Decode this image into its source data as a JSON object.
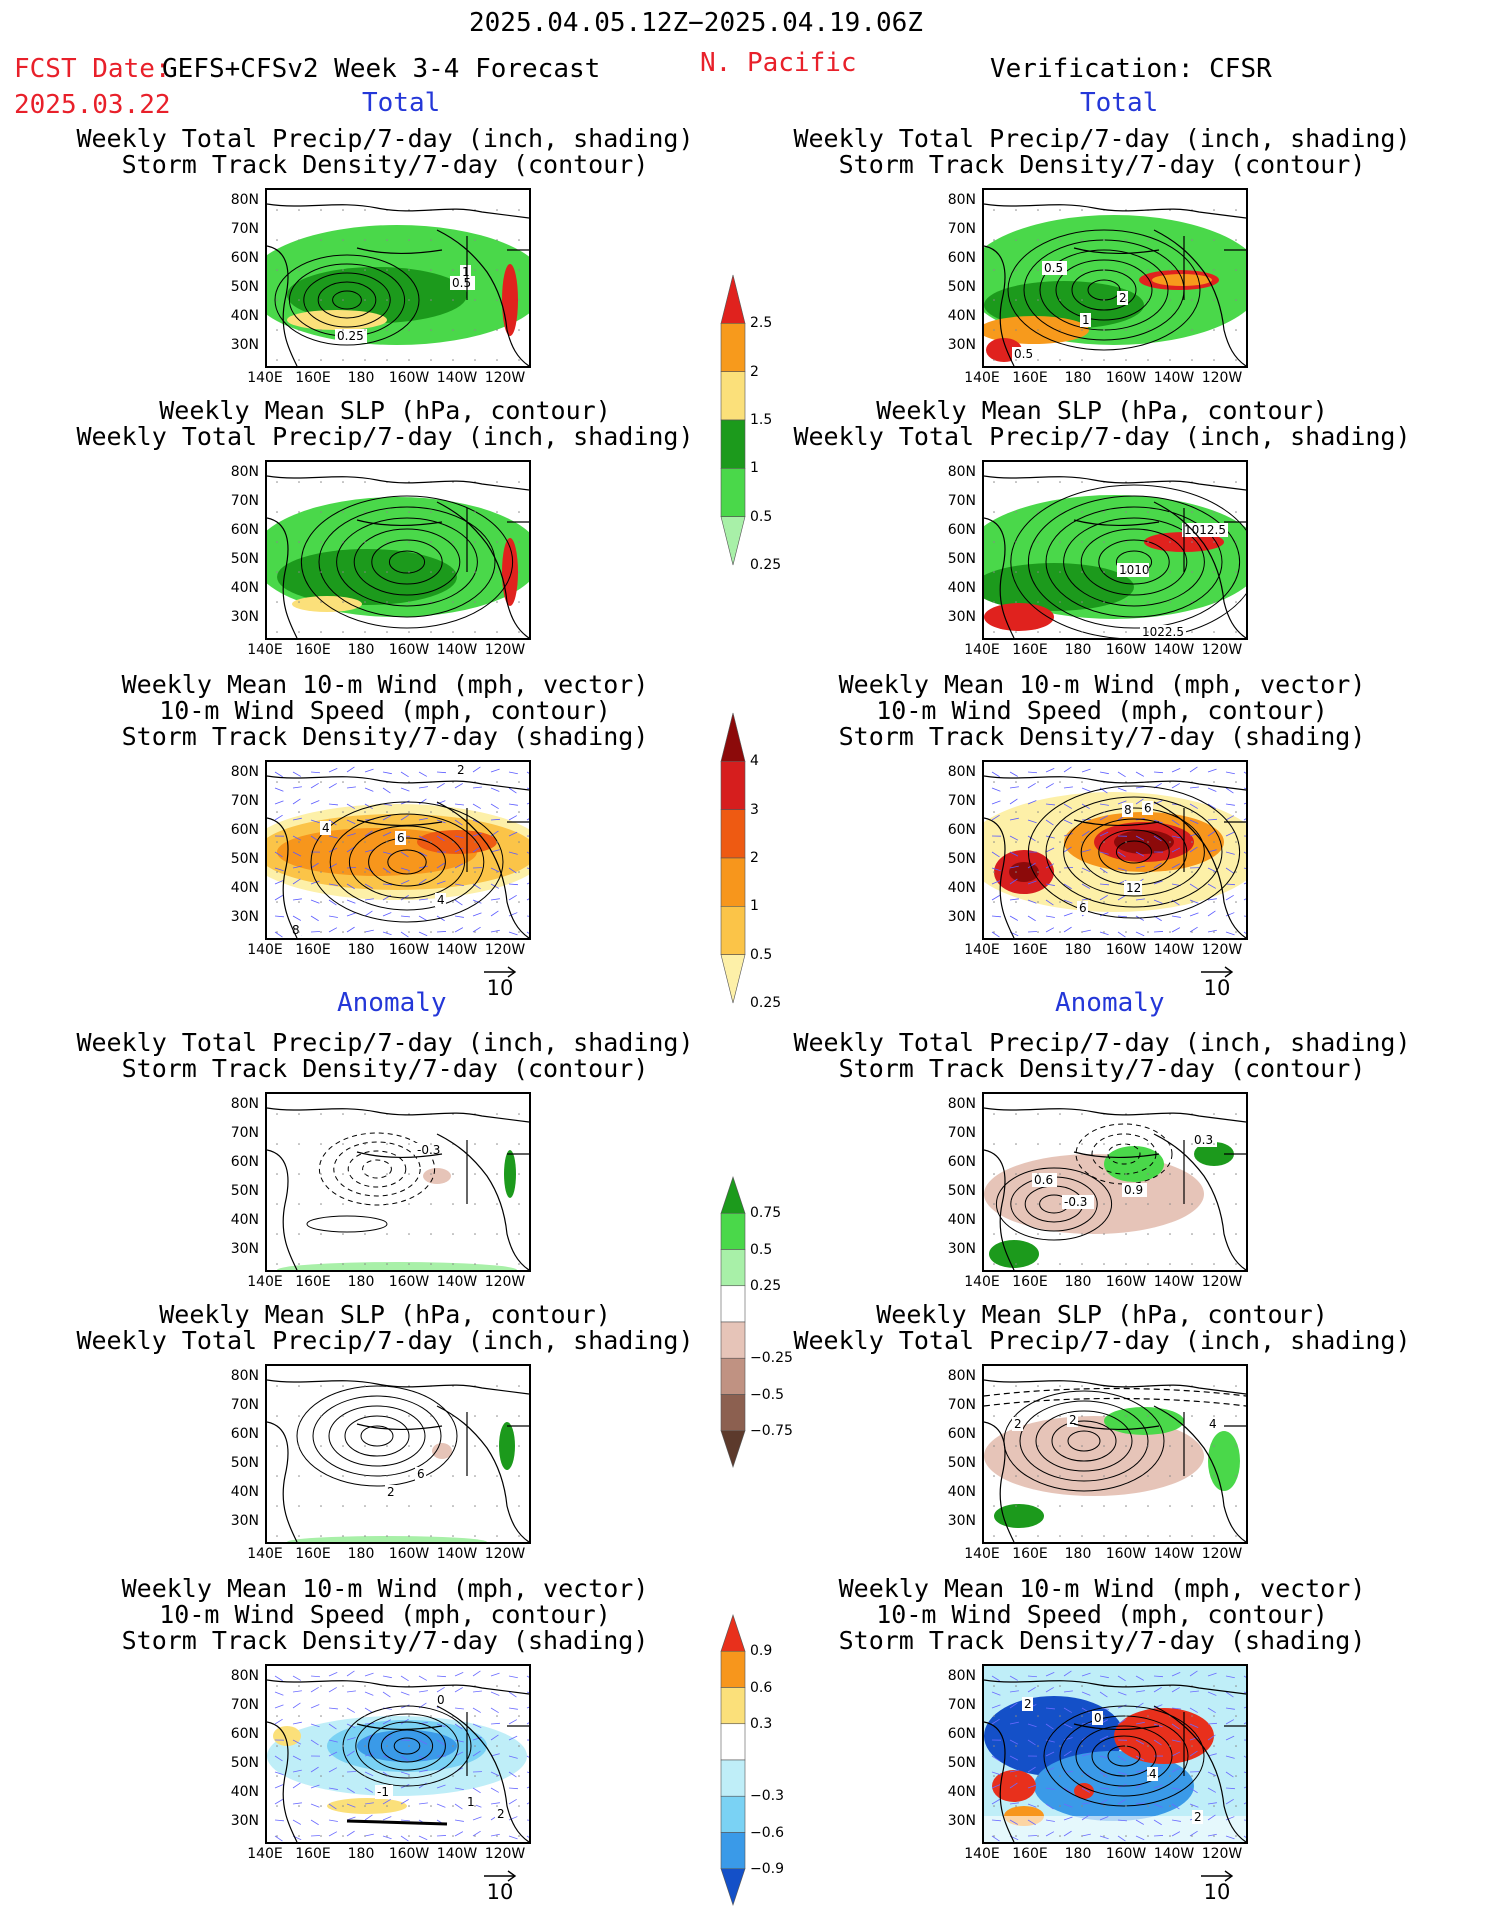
{
  "header": {
    "date_range": "2025.04.05.12Z−2025.04.19.06Z",
    "fcst_label": "FCST Date:",
    "fcst_model": "GEFS+CFSv2 Week 3-4 Forecast",
    "fcst_date": "2025.03.22",
    "region": "N. Pacific",
    "verification": "Verification: CFSR"
  },
  "sections": {
    "total": "Total",
    "anomaly": "Anomaly"
  },
  "panel_titles": {
    "precip_track": [
      "Weekly Total Precip/7-day (inch, shading)",
      "Storm Track Density/7-day (contour)"
    ],
    "slp_precip": [
      "Weekly Mean SLP (hPa, contour)",
      "Weekly Total Precip/7-day (inch, shading)"
    ],
    "wind_track": [
      "Weekly Mean 10-m Wind (mph, vector)",
      "10-m Wind Speed (mph, contour)",
      "Storm Track Density/7-day (shading)"
    ]
  },
  "axes": {
    "lat_labels": [
      "80N",
      "70N",
      "60N",
      "50N",
      "40N",
      "30N"
    ],
    "lon_labels": [
      "140E",
      "160E",
      "180",
      "160W",
      "140W",
      "120W"
    ]
  },
  "vector_reference": "10",
  "colorbars": {
    "precip_total": {
      "labels": [
        "2.5",
        "2",
        "1.5",
        "1",
        "0.5",
        "0.25"
      ],
      "colors": [
        "#e0221e",
        "#f79a1c",
        "#fbe07a",
        "#1c9a1c",
        "#4ad84a",
        "#a8f0a8"
      ]
    },
    "track_total": {
      "labels": [
        "4",
        "3",
        "2",
        "1",
        "0.5",
        "0.25"
      ],
      "colors": [
        "#8c0a0a",
        "#d61e1e",
        "#ee5a12",
        "#f7961c",
        "#fbc448",
        "#fdf0a8"
      ]
    },
    "precip_anom": {
      "labels": [
        "0.75",
        "0.5",
        "0.25",
        "−0.25",
        "−0.5",
        "−0.75"
      ],
      "colors": [
        "#1c9a1c",
        "#4ad84a",
        "#a8f0a8",
        "#ffffff",
        "#e6c4b8",
        "#c09282",
        "#8c6050",
        "#5c3a2c"
      ]
    },
    "track_anom": {
      "labels": [
        "0.9",
        "0.6",
        "0.3",
        "−0.3",
        "−0.6",
        "−0.9"
      ],
      "colors": [
        "#e8301c",
        "#f7961c",
        "#fbe07a",
        "#ffffff",
        "#bfeef8",
        "#7ad2f4",
        "#3a9ae8",
        "#1450c8"
      ]
    }
  },
  "contour_labels": {
    "r1_left": [
      "1",
      "0.5",
      "0.25"
    ],
    "r1_right": [
      "0.5",
      "2",
      "1",
      "0.5"
    ],
    "r2_right": [
      "1012.5",
      "1010",
      "1022.5"
    ],
    "r3_left": [
      "2",
      "4",
      "6",
      "4",
      "8"
    ],
    "r3_right": [
      "8",
      "6",
      "12",
      "6"
    ],
    "r4_left": [
      "-0.3"
    ],
    "r4_right": [
      "0.6",
      "0.9",
      "-0.3",
      "0.3"
    ],
    "r5_left": [
      "6",
      "2"
    ],
    "r5_right": [
      "2",
      "2",
      "4"
    ],
    "r6_left": [
      "0",
      "-1",
      "1",
      "2"
    ],
    "r6_right": [
      "2",
      "0",
      "4",
      "2"
    ]
  }
}
